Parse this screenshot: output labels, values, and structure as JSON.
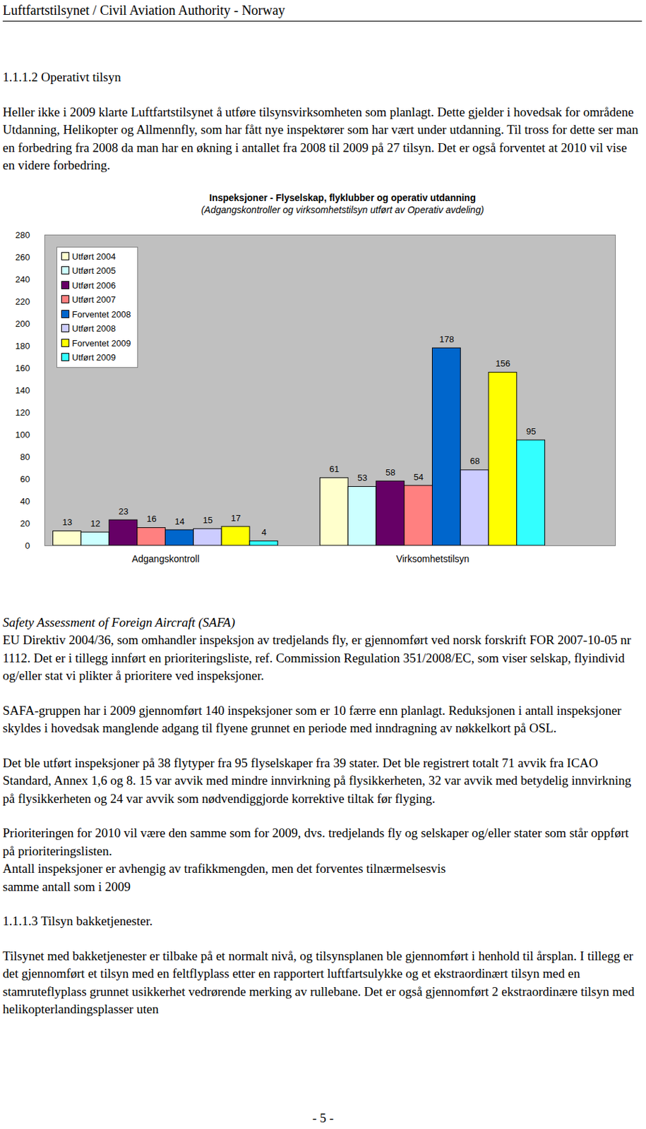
{
  "header": "Luftfartstilsynet / Civil Aviation Authority - Norway",
  "before_chart": [
    {
      "heading": "1.1.1.2 Operativt tilsyn"
    },
    {
      "paragraph": "Heller ikke i 2009 klarte Luftfartstilsynet å utføre tilsynsvirksomheten som planlagt. Dette gjelder i hovedsak for områdene Utdanning, Helikopter og Allmennfly, som har fått nye inspektører som har vært under utdanning. Til tross for dette ser man en forbedring fra 2008 da man har en økning i antallet fra 2008 til 2009 på 27 tilsyn. Det er også forventet at 2010 vil vise en videre forbedring."
    }
  ],
  "chart_data": {
    "type": "bar",
    "title": "Inspeksjoner  -  Flyselskap, flyklubber og operativ utdanning",
    "subtitle": "(Adgangskontroller og virksomhetstilsyn utført av Operativ avdeling)",
    "categories": [
      "Adgangskontroll",
      "Virksomhetstilsyn"
    ],
    "series": [
      {
        "name": "Utført 2004",
        "color": "#ffffcc",
        "values": [
          13,
          61
        ]
      },
      {
        "name": "Utført 2005",
        "color": "#ccffff",
        "values": [
          12,
          53
        ]
      },
      {
        "name": "Utført 2006",
        "color": "#660066",
        "values": [
          23,
          58
        ]
      },
      {
        "name": "Utført 2007",
        "color": "#ff8080",
        "values": [
          16,
          54
        ]
      },
      {
        "name": "Forventet 2008",
        "color": "#0066cc",
        "values": [
          14,
          178
        ]
      },
      {
        "name": "Utført 2008",
        "color": "#ccccff",
        "values": [
          15,
          68
        ]
      },
      {
        "name": "Forventet 2009",
        "color": "#ffff00",
        "values": [
          17,
          156
        ]
      },
      {
        "name": "Utført 2009",
        "color": "#33ffff",
        "values": [
          4,
          95
        ]
      }
    ],
    "ylim": [
      0,
      280
    ],
    "yticks": [
      0,
      20,
      40,
      60,
      80,
      100,
      120,
      140,
      160,
      180,
      200,
      220,
      240,
      260,
      280
    ],
    "grid": false,
    "legend": "top-left",
    "data_labels": true
  },
  "after_chart": [
    {
      "emphasis": "Safety Assessment of Foreign Aircraft (SAFA)",
      "paragraph": "EU Direktiv 2004/36, som omhandler inspeksjon av tredjelands fly, er gjennomført ved norsk forskrift FOR 2007-10-05 nr 1112. Det er i tillegg innført en prioriteringsliste, ref. Commission Regulation 351/2008/EC, som viser selskap, flyindivid og/eller stat vi plikter å prioritere ved inspeksjoner."
    },
    {
      "paragraph": "SAFA-gruppen har i 2009 gjennomført 140 inspeksjoner som er 10 færre enn planlagt. Reduksjonen i antall inspeksjoner skyldes i hovedsak manglende adgang til flyene grunnet en periode med inndragning av nøkkelkort på OSL."
    },
    {
      "paragraph": "Det ble utført inspeksjoner på 38 flytyper fra 95 flyselskaper fra 39 stater. Det ble registrert totalt 71 avvik fra ICAO Standard, Annex 1,6 og 8. 15 var avvik med mindre innvirkning på flysikkerheten, 32 var avvik med betydelig innvirkning på flysikkerheten og 24 var avvik som nødvendiggjorde korrektive tiltak før flyging."
    },
    {
      "lines": [
        "Prioriteringen for 2010 vil være den samme som for 2009, dvs. tredjelands fly og selskaper og/eller stater som står oppført på prioriteringslisten.",
        "Antall inspeksjoner er avhengig av trafikkmengden, men det forventes tilnærmelsesvis",
        "samme antall som i 2009"
      ]
    },
    {
      "heading": "1.1.1.3  Tilsyn bakketjenester."
    },
    {
      "paragraph": "Tilsynet med bakketjenester er tilbake på et normalt nivå, og tilsynsplanen ble gjennomført i henhold til årsplan. I tillegg er det gjennomført et tilsyn med en feltflyplass etter en rapportert luftfartsulykke og et ekstraordinært tilsyn med en stamruteflyplass grunnet usikkerhet vedrørende merking av rullebane. Det er også gjennomført 2 ekstraordinære tilsyn med helikopterlandingsplasser uten"
    }
  ],
  "footer": "- 5 -"
}
